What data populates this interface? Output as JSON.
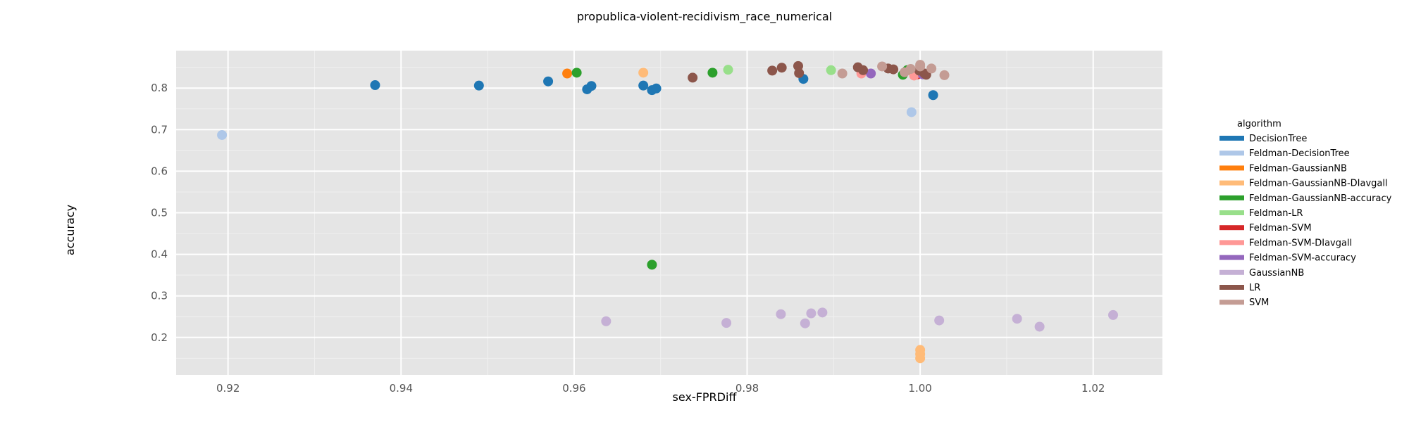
{
  "chart_data": {
    "type": "scatter",
    "title": "propublica-violent-recidivism_race_numerical",
    "xlabel": "sex-FPRDiff",
    "ylabel": "accuracy",
    "xlim": [
      0.914,
      1.028
    ],
    "ylim": [
      0.11,
      0.89
    ],
    "xticks": [
      0.92,
      0.94,
      0.96,
      0.98,
      1.0,
      1.02
    ],
    "xtick_labels": [
      "0.92",
      "0.94",
      "0.96",
      "0.98",
      "1.00",
      "1.02"
    ],
    "yticks": [
      0.2,
      0.3,
      0.4,
      0.5,
      0.6,
      0.7,
      0.8
    ],
    "ytick_labels": [
      "0.2",
      "0.3",
      "0.4",
      "0.5",
      "0.6",
      "0.7",
      "0.8"
    ],
    "legend": {
      "title": "algorithm",
      "position": "right",
      "entries": [
        {
          "name": "DecisionTree",
          "color": "#1f77b4"
        },
        {
          "name": "Feldman-DecisionTree",
          "color": "#aec7e8"
        },
        {
          "name": "Feldman-GaussianNB",
          "color": "#ff7f0e"
        },
        {
          "name": "Feldman-GaussianNB-DIavgall",
          "color": "#ffbb78"
        },
        {
          "name": "Feldman-GaussianNB-accuracy",
          "color": "#2ca02c"
        },
        {
          "name": "Feldman-LR",
          "color": "#98df8a"
        },
        {
          "name": "Feldman-SVM",
          "color": "#d62728"
        },
        {
          "name": "Feldman-SVM-DIavgall",
          "color": "#ff9896"
        },
        {
          "name": "Feldman-SVM-accuracy",
          "color": "#9467bd"
        },
        {
          "name": "GaussianNB",
          "color": "#c5b0d5"
        },
        {
          "name": "LR",
          "color": "#8c564b"
        },
        {
          "name": "SVM",
          "color": "#c49c94"
        }
      ]
    },
    "series": [
      {
        "name": "DecisionTree",
        "points": [
          [
            0.937,
            0.807
          ],
          [
            0.949,
            0.806
          ],
          [
            0.957,
            0.816
          ],
          [
            0.9615,
            0.797
          ],
          [
            0.962,
            0.805
          ],
          [
            0.968,
            0.806
          ],
          [
            0.969,
            0.795
          ],
          [
            0.9695,
            0.799
          ],
          [
            0.9865,
            0.822
          ],
          [
            1.0015,
            0.783
          ]
        ]
      },
      {
        "name": "Feldman-DecisionTree",
        "points": [
          [
            0.9193,
            0.687
          ],
          [
            0.999,
            0.742
          ]
        ]
      },
      {
        "name": "Feldman-GaussianNB",
        "points": [
          [
            0.9592,
            0.835
          ]
        ]
      },
      {
        "name": "Feldman-GaussianNB-DIavgall",
        "points": [
          [
            0.968,
            0.837
          ],
          [
            1.0,
            0.17
          ],
          [
            1.0,
            0.16
          ],
          [
            1.0,
            0.15
          ]
        ]
      },
      {
        "name": "Feldman-GaussianNB-accuracy",
        "points": [
          [
            0.9603,
            0.837
          ],
          [
            0.969,
            0.375
          ],
          [
            0.976,
            0.837
          ],
          [
            0.998,
            0.832
          ],
          [
            0.9985,
            0.843
          ]
        ]
      },
      {
        "name": "Feldman-LR",
        "points": [
          [
            0.9778,
            0.844
          ],
          [
            0.9897,
            0.843
          ]
        ]
      },
      {
        "name": "Feldman-SVM",
        "points": [
          [
            0.9997,
            0.833
          ],
          [
            1.0,
            0.84
          ]
        ]
      },
      {
        "name": "Feldman-SVM-DIavgall",
        "points": [
          [
            0.9932,
            0.835
          ],
          [
            0.9993,
            0.83
          ],
          [
            0.9998,
            0.84
          ]
        ]
      },
      {
        "name": "Feldman-SVM-accuracy",
        "points": [
          [
            0.9943,
            0.835
          ],
          [
            1.0003,
            0.833
          ]
        ]
      },
      {
        "name": "GaussianNB",
        "points": [
          [
            0.9637,
            0.239
          ],
          [
            0.9776,
            0.235
          ],
          [
            0.9839,
            0.256
          ],
          [
            0.9867,
            0.234
          ],
          [
            0.9874,
            0.258
          ],
          [
            0.9887,
            0.26
          ],
          [
            1.0022,
            0.241
          ],
          [
            1.0112,
            0.245
          ],
          [
            1.0138,
            0.226
          ],
          [
            1.0223,
            0.254
          ]
        ]
      },
      {
        "name": "LR",
        "points": [
          [
            0.9737,
            0.825
          ],
          [
            0.9829,
            0.842
          ],
          [
            0.984,
            0.849
          ],
          [
            0.9859,
            0.853
          ],
          [
            0.986,
            0.836
          ],
          [
            0.9928,
            0.85
          ],
          [
            0.9934,
            0.843
          ],
          [
            0.9963,
            0.847
          ],
          [
            0.9969,
            0.845
          ],
          [
            0.9999,
            0.842
          ],
          [
            1.0005,
            0.835
          ],
          [
            1.0007,
            0.832
          ]
        ]
      },
      {
        "name": "SVM",
        "points": [
          [
            0.991,
            0.835
          ],
          [
            0.9956,
            0.852
          ],
          [
            0.9982,
            0.838
          ],
          [
            0.9989,
            0.846
          ],
          [
            1.0,
            0.852
          ],
          [
            1.0,
            0.856
          ],
          [
            1.0013,
            0.847
          ],
          [
            1.0028,
            0.831
          ]
        ]
      }
    ]
  }
}
